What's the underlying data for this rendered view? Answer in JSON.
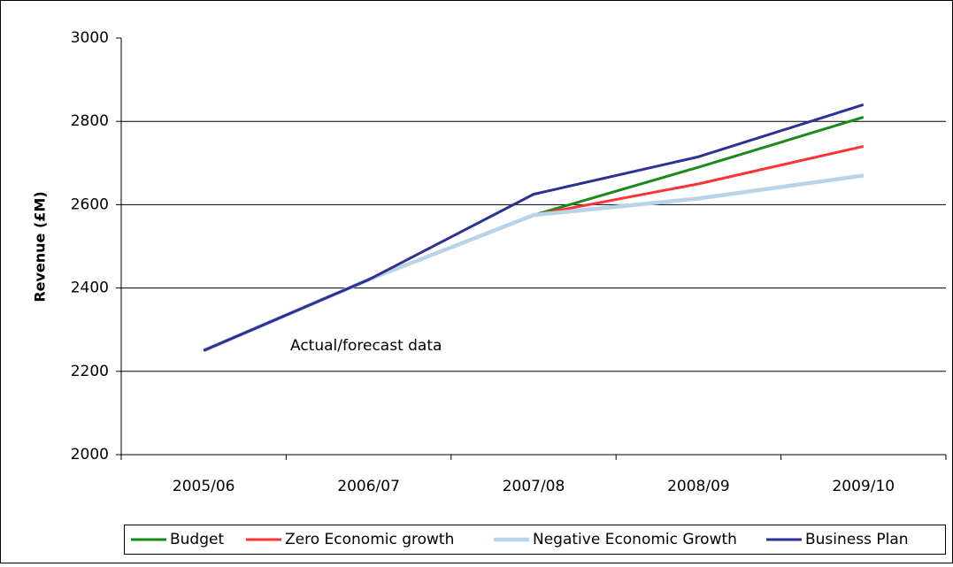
{
  "chart_data": {
    "type": "line",
    "y_label": "Revenue (£M)",
    "annotation": "Actual/forecast data",
    "categories": [
      "2005/06",
      "2006/07",
      "2007/08",
      "2008/09",
      "2009/10"
    ],
    "series": [
      {
        "name": "Budget",
        "color": "#1a8a1a",
        "values": [
          2250,
          2420,
          2575,
          2690,
          2810
        ]
      },
      {
        "name": "Zero Economic growth",
        "color": "#ff3333",
        "values": [
          2250,
          2420,
          2575,
          2650,
          2740
        ]
      },
      {
        "name": "Negative Economic Growth",
        "color": "#b9d3e8",
        "values": [
          2250,
          2420,
          2575,
          2615,
          2670
        ]
      },
      {
        "name": "Business Plan",
        "color": "#2e3192",
        "values": [
          2250,
          2420,
          2625,
          2715,
          2840
        ]
      }
    ],
    "ylim": [
      2000,
      3000
    ],
    "yticks": [
      2000,
      2200,
      2400,
      2600,
      2800,
      3000
    ],
    "grid": true,
    "legend": "bottom"
  }
}
